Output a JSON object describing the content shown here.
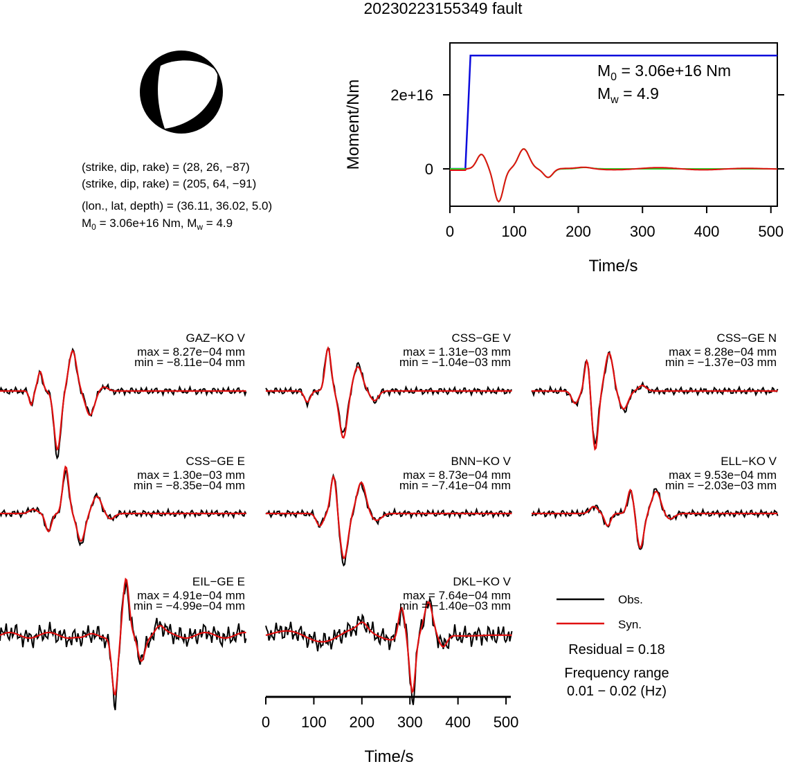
{
  "title": "20230223155349 fault",
  "mechanism": {
    "planes": [
      "(strike, dip, rake) = (28, 26, −87)",
      "(strike, dip, rake) = (205, 64, −91)"
    ],
    "location": "(lon., lat, depth) = (36.11, 36.02, 5.0)",
    "m0_text": "3.06e+16 Nm",
    "mw_text": "4.9"
  },
  "stf": {
    "ylabel": "Moment/Nm",
    "xlabel": "Time/s",
    "m0_value": "= 3.06e+16 Nm",
    "mw_value": "= 4.9",
    "yticks": [
      "2e+16",
      "0"
    ],
    "xticks": [
      "0",
      "100",
      "200",
      "300",
      "400",
      "500"
    ]
  },
  "waveforms": {
    "xlabel": "Time/s",
    "xticks": [
      "0",
      "100",
      "200",
      "300",
      "400",
      "500"
    ]
  },
  "legend": {
    "obs": "Obs.",
    "syn": "Syn.",
    "residual": "Residual = 0.18",
    "freq_title": "Frequency range",
    "freq_value": "0.01 − 0.02 (Hz)"
  },
  "colors": {
    "obs": "#000000",
    "syn": "#e01010",
    "moment": "#0a0adc",
    "green": "#22d022"
  },
  "chart_data": [
    {
      "type": "line",
      "title": "",
      "xlabel": "Time/s",
      "ylabel": "Moment/Nm",
      "xlim": [
        0,
        510
      ],
      "series": [
        {
          "name": "",
          "x": [
            0,
            24,
            28,
            32,
            510
          ],
          "y": [
            0,
            0,
            1.5e+16,
            3.06e+16,
            3.06e+16
          ]
        }
      ]
    },
    {
      "type": "line",
      "title": "",
      "xlabel": "Time/s",
      "ylabel": "",
      "xlim": [
        0,
        510
      ],
      "stations": [
        {
          "name": "GAZ−KO V",
          "max": "max = 8.27e−04 mm",
          "min": "min = −8.11e−04 mm"
        },
        {
          "name": "CSS−GE V",
          "max": "max = 1.31e−03 mm",
          "min": "min = −1.04e−03 mm"
        },
        {
          "name": "CSS−GE N",
          "max": "max = 8.28e−04 mm",
          "min": "min = −1.37e−03 mm"
        },
        {
          "name": "CSS−GE E",
          "max": "max = 1.30e−03 mm",
          "min": "min = −8.35e−04 mm"
        },
        {
          "name": "BNN−KO V",
          "max": "max = 8.73e−04 mm",
          "min": "min = −7.41e−04 mm"
        },
        {
          "name": "ELL−KO V",
          "max": "max = 9.53e−04 mm",
          "min": "min = −2.03e−03 mm"
        },
        {
          "name": "EIL−GE E",
          "max": "max = 4.91e−04 mm",
          "min": "min = −4.99e−04 mm"
        },
        {
          "name": "DKL−KO V",
          "max": "max = 7.64e−04 mm",
          "min": "min = −1.40e−03 mm"
        }
      ]
    }
  ]
}
